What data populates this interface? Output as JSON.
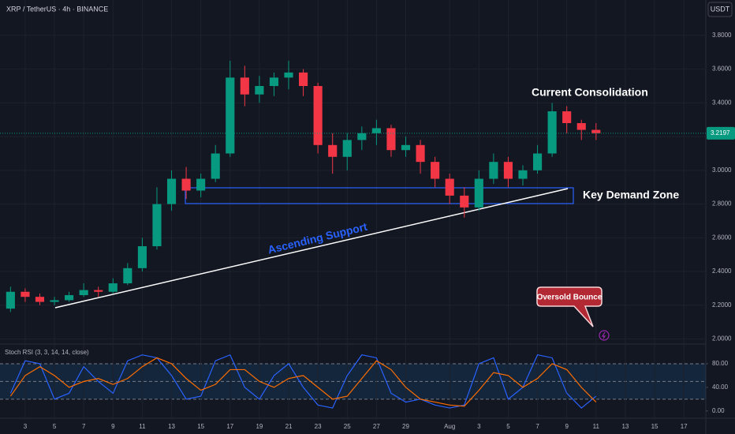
{
  "header": {
    "symbol": "XRP / TetherUS · 4h · BINANCE",
    "currency": "USDT"
  },
  "chart_data": [
    {
      "type": "candlestick",
      "x": [
        2,
        3,
        4,
        5,
        6,
        7,
        8,
        9,
        10,
        11,
        12,
        13,
        14,
        15,
        16,
        17,
        18,
        19,
        20,
        21,
        22,
        23,
        24,
        25,
        26,
        27,
        28,
        29,
        30,
        31,
        32,
        33,
        34,
        35,
        36,
        37,
        38,
        39,
        40,
        41,
        42
      ],
      "open": [
        2.18,
        2.28,
        2.25,
        2.22,
        2.23,
        2.26,
        2.29,
        2.28,
        2.33,
        2.42,
        2.55,
        2.8,
        2.95,
        2.88,
        2.95,
        3.1,
        3.55,
        3.45,
        3.5,
        3.55,
        3.58,
        3.5,
        3.15,
        3.08,
        3.18,
        3.22,
        3.25,
        3.12,
        3.15,
        3.05,
        2.95,
        2.85,
        2.78,
        2.95,
        3.05,
        2.95,
        3.0,
        3.1,
        3.35,
        3.28,
        3.24
      ],
      "high": [
        2.31,
        2.3,
        2.27,
        2.25,
        2.28,
        2.33,
        2.31,
        2.36,
        2.45,
        2.6,
        2.9,
        3.0,
        3.02,
        2.98,
        3.15,
        3.65,
        3.62,
        3.56,
        3.58,
        3.65,
        3.6,
        3.52,
        3.22,
        3.22,
        3.26,
        3.3,
        3.27,
        3.2,
        3.18,
        3.08,
        2.98,
        2.9,
        3.0,
        3.1,
        3.08,
        3.03,
        3.15,
        3.4,
        3.38,
        3.3,
        3.28
      ],
      "low": [
        2.16,
        2.22,
        2.2,
        2.2,
        2.22,
        2.25,
        2.25,
        2.27,
        2.32,
        2.4,
        2.53,
        2.76,
        2.83,
        2.84,
        2.93,
        3.08,
        3.38,
        3.4,
        3.44,
        3.48,
        3.44,
        3.1,
        2.98,
        3.0,
        3.12,
        3.15,
        3.08,
        3.08,
        2.98,
        2.9,
        2.8,
        2.72,
        2.76,
        2.92,
        2.9,
        2.91,
        2.98,
        3.08,
        3.22,
        3.18,
        3.18
      ],
      "close": [
        2.28,
        2.25,
        2.22,
        2.23,
        2.26,
        2.29,
        2.28,
        2.33,
        2.42,
        2.55,
        2.8,
        2.95,
        2.88,
        2.95,
        3.1,
        3.55,
        3.45,
        3.5,
        3.55,
        3.58,
        3.5,
        3.15,
        3.08,
        3.18,
        3.22,
        3.25,
        3.12,
        3.15,
        3.05,
        2.95,
        2.85,
        2.78,
        2.95,
        3.05,
        2.95,
        3.0,
        3.1,
        3.35,
        3.28,
        3.24,
        3.22
      ],
      "up_color": "#089981",
      "down_color": "#f23645",
      "xlim": [
        1.28,
        49.5
      ],
      "ylim": [
        1.97,
        4.01
      ],
      "yticks": [
        {
          "value": 3.8,
          "label": "3.8000"
        },
        {
          "value": 3.6,
          "label": "3.6000"
        },
        {
          "value": 3.4,
          "label": "3.4000"
        },
        {
          "value": 3.2,
          "label": "3.2000"
        },
        {
          "value": 3.0,
          "label": "3.0000"
        },
        {
          "value": 2.8,
          "label": "2.8000"
        },
        {
          "value": 2.6,
          "label": "2.6000"
        },
        {
          "value": 2.4,
          "label": "2.4000"
        },
        {
          "value": 2.2,
          "label": "2.2000"
        },
        {
          "value": 2.0,
          "label": "2.0000"
        }
      ],
      "current_price": 3.2197,
      "annotations": [
        "Current Consolidation",
        "Key Demand Zone",
        "Ascending Support",
        "Oversold Bounce"
      ]
    },
    {
      "type": "line",
      "title": "Stoch RSI (3, 3, 14, 14, close)",
      "x": [
        2,
        3,
        4,
        5,
        6,
        7,
        8,
        9,
        10,
        11,
        12,
        13,
        14,
        15,
        16,
        17,
        18,
        19,
        20,
        21,
        22,
        23,
        24,
        25,
        26,
        27,
        28,
        29,
        30,
        31,
        32,
        33,
        34,
        35,
        36,
        37,
        38,
        39,
        40,
        41,
        42
      ],
      "series": [
        {
          "color": "#2962ff",
          "values": [
            30,
            85,
            80,
            20,
            30,
            75,
            50,
            30,
            85,
            95,
            90,
            60,
            20,
            25,
            85,
            95,
            40,
            20,
            60,
            80,
            40,
            10,
            5,
            60,
            95,
            90,
            30,
            15,
            20,
            10,
            5,
            10,
            80,
            90,
            20,
            40,
            95,
            90,
            30,
            5,
            25
          ]
        },
        {
          "color": "#ff6d00",
          "values": [
            25,
            60,
            75,
            60,
            40,
            50,
            55,
            45,
            55,
            75,
            90,
            80,
            55,
            35,
            45,
            70,
            70,
            50,
            40,
            55,
            60,
            40,
            20,
            25,
            55,
            85,
            70,
            40,
            20,
            15,
            10,
            8,
            35,
            65,
            60,
            40,
            55,
            80,
            70,
            40,
            15
          ]
        }
      ],
      "levels": [
        80,
        50,
        20
      ],
      "xlim": [
        1.28,
        49.5
      ],
      "ylim": [
        -15,
        108
      ],
      "yticks": [
        {
          "value": 80,
          "label": "80.00"
        },
        {
          "value": 40,
          "label": "40.00"
        },
        {
          "value": 0,
          "label": "0.00"
        }
      ],
      "xticks": [
        3,
        5,
        7,
        9,
        11,
        13,
        15,
        17,
        19,
        21,
        23,
        25,
        27,
        29,
        {
          "value": 32,
          "label": "Aug"
        },
        {
          "value": 34,
          "label": "3"
        },
        {
          "value": 36,
          "label": "5"
        },
        {
          "value": 38,
          "label": "7"
        },
        {
          "value": 40,
          "label": "9"
        },
        {
          "value": 42,
          "label": "11"
        },
        {
          "value": 44,
          "label": "13"
        },
        {
          "value": 46,
          "label": "15"
        },
        {
          "value": 48,
          "label": "17"
        }
      ]
    }
  ]
}
